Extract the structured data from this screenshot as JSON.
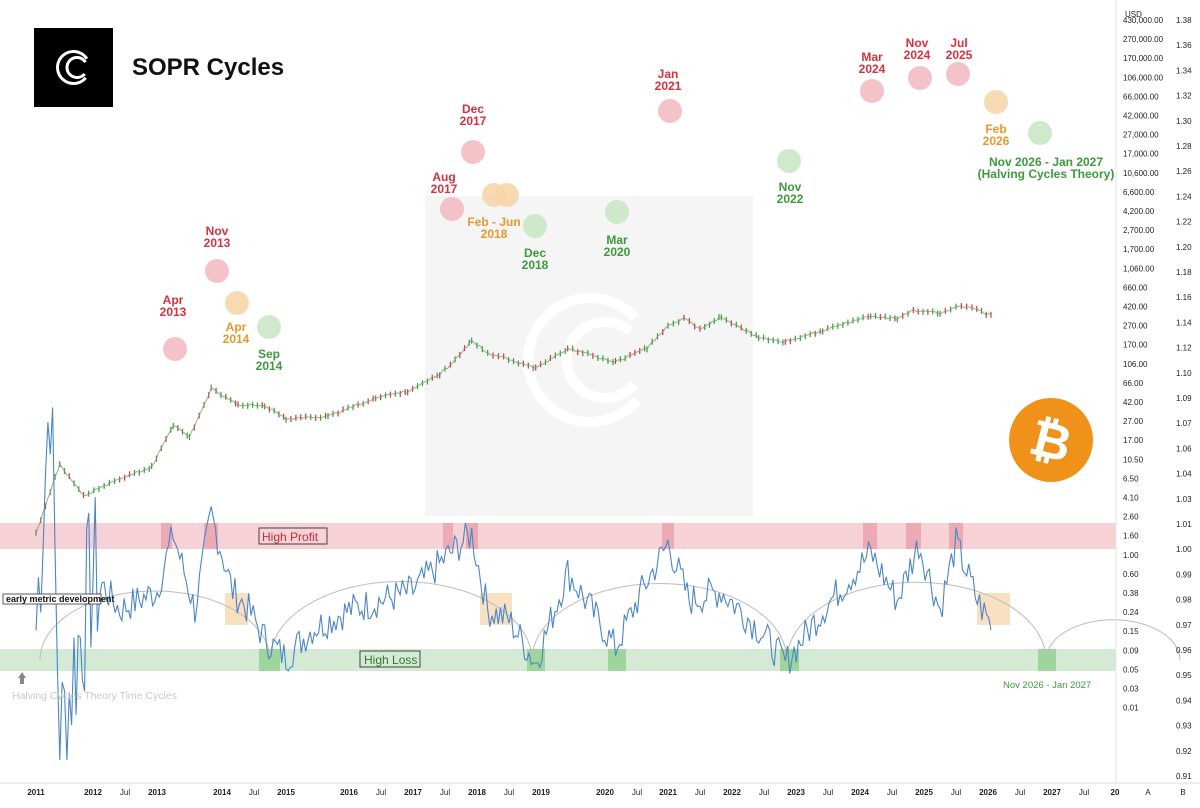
{
  "title": "SOPR Cycles",
  "brand_mark_name": "C",
  "chart_data": {
    "type": "line",
    "title": "SOPR Cycles",
    "price_axis": {
      "unit": "USD",
      "scale": "log",
      "ticks": [
        "430,000.00",
        "270,000.00",
        "170,000.00",
        "106,000.00",
        "66,000.00",
        "42,000.00",
        "27,000.00",
        "17,000.00",
        "10,600.00",
        "6,600.00",
        "4,200.00",
        "2,700.00",
        "1,700.00",
        "1,060.00",
        "660.00",
        "420.00",
        "270.00",
        "170.00",
        "106.00",
        "66.00",
        "42.00",
        "27.00",
        "17.00",
        "10.50",
        "6.50",
        "4.10",
        "2.60",
        "1.60",
        "1.00",
        "0.60",
        "0.38",
        "0.24",
        "0.15",
        "0.09",
        "0.05",
        "0.03",
        "0.01"
      ]
    },
    "sopr_axis": {
      "ticks": [
        "1.38",
        "1.36",
        "1.34",
        "1.32",
        "1.30",
        "1.28",
        "1.26",
        "1.24",
        "1.22",
        "1.20",
        "1.18",
        "1.16",
        "1.14",
        "1.12",
        "1.10",
        "1.09",
        "1.07",
        "1.06",
        "1.04",
        "1.03",
        "1.01",
        "1.00",
        "0.99",
        "0.98",
        "0.97",
        "0.96",
        "0.95",
        "0.94",
        "0.93",
        "0.92",
        "0.91"
      ]
    },
    "x_axis": {
      "labels": [
        "2011",
        "2012",
        "Jul",
        "2013",
        "2014",
        "Jul",
        "2015",
        "2016",
        "Jul",
        "2017",
        "Jul",
        "2018",
        "Jul",
        "2019",
        "2020",
        "Jul",
        "2021",
        "Jul",
        "2022",
        "Jul",
        "2023",
        "Jul",
        "2024",
        "Jul",
        "2025",
        "Jul",
        "2026",
        "Jul",
        "2027",
        "Jul",
        "20",
        "A",
        "B"
      ]
    },
    "price_series": {
      "name": "BTC price",
      "points": [
        [
          "2011-01",
          0.3
        ],
        [
          "2011-06",
          15
        ],
        [
          "2011-11",
          2.5
        ],
        [
          "2012-06",
          6.5
        ],
        [
          "2012-12",
          13
        ],
        [
          "2013-04",
          140
        ],
        [
          "2013-07",
          70
        ],
        [
          "2013-11",
          1100
        ],
        [
          "2014-04",
          450
        ],
        [
          "2014-09",
          420
        ],
        [
          "2015-01",
          200
        ],
        [
          "2015-09",
          230
        ],
        [
          "2016-06",
          650
        ],
        [
          "2016-12",
          950
        ],
        [
          "2017-06",
          2500
        ],
        [
          "2017-08",
          4200
        ],
        [
          "2017-12",
          17000
        ],
        [
          "2018-03",
          8500
        ],
        [
          "2018-06",
          6500
        ],
        [
          "2018-12",
          3500
        ],
        [
          "2019-06",
          11000
        ],
        [
          "2020-03",
          5000
        ],
        [
          "2020-09",
          11000
        ],
        [
          "2021-01",
          38000
        ],
        [
          "2021-04",
          60000
        ],
        [
          "2021-07",
          32000
        ],
        [
          "2021-11",
          66000
        ],
        [
          "2022-06",
          20000
        ],
        [
          "2022-11",
          16000
        ],
        [
          "2023-06",
          30000
        ],
        [
          "2024-03",
          70000
        ],
        [
          "2024-08",
          58000
        ],
        [
          "2024-11",
          95000
        ],
        [
          "2025-04",
          80000
        ],
        [
          "2025-07",
          118000
        ],
        [
          "2025-10",
          110000
        ],
        [
          "2026-02",
          67000
        ]
      ]
    },
    "sopr_series": {
      "name": "SOPR",
      "points": [
        [
          "2011-01",
          0.99
        ],
        [
          "2011-04",
          1.12
        ],
        [
          "2011-06",
          0.93
        ],
        [
          "2011-09",
          0.97
        ],
        [
          "2012-01",
          1.02
        ],
        [
          "2012-06",
          1.0
        ],
        [
          "2013-01",
          1.01
        ],
        [
          "2013-04",
          1.04
        ],
        [
          "2013-08",
          1.0
        ],
        [
          "2013-11",
          1.05
        ],
        [
          "2014-03",
          1.01
        ],
        [
          "2014-06",
          1.0
        ],
        [
          "2014-09",
          0.985
        ],
        [
          "2015-01",
          0.975
        ],
        [
          "2015-06",
          0.99
        ],
        [
          "2016-01",
          1.0
        ],
        [
          "2016-07",
          1.005
        ],
        [
          "2017-01",
          1.01
        ],
        [
          "2017-08",
          1.03
        ],
        [
          "2017-12",
          1.04
        ],
        [
          "2018-03",
          1.0
        ],
        [
          "2018-07",
          0.995
        ],
        [
          "2018-12",
          0.972
        ],
        [
          "2019-06",
          1.02
        ],
        [
          "2020-03",
          0.98
        ],
        [
          "2020-08",
          1.01
        ],
        [
          "2021-01",
          1.035
        ],
        [
          "2021-05",
          1.005
        ],
        [
          "2021-11",
          1.01
        ],
        [
          "2022-06",
          0.99
        ],
        [
          "2022-11",
          0.972
        ],
        [
          "2023-06",
          1.0
        ],
        [
          "2024-03",
          1.03
        ],
        [
          "2024-08",
          1.005
        ],
        [
          "2024-12",
          1.035
        ],
        [
          "2025-04",
          1.0
        ],
        [
          "2025-07",
          1.035
        ],
        [
          "2025-11",
          1.005
        ],
        [
          "2026-02",
          0.99
        ]
      ]
    },
    "bands": [
      {
        "label": "High Profit",
        "color": "#f4c9cf"
      },
      {
        "label": "High Loss",
        "color": "#cfe8cf"
      }
    ],
    "labels_misc": {
      "early": "early metric development",
      "halving_left": "Halving Cycles Theory Time Cycles",
      "halving_right": "Nov 2026 - Jan 2027"
    },
    "annotations": [
      {
        "lines": [
          "Apr",
          "2013"
        ],
        "kind": "top"
      },
      {
        "lines": [
          "Nov",
          "2013"
        ],
        "kind": "top"
      },
      {
        "lines": [
          "Apr",
          "2014"
        ],
        "kind": "mid"
      },
      {
        "lines": [
          "Sep",
          "2014"
        ],
        "kind": "bottom"
      },
      {
        "lines": [
          "Aug",
          "2017"
        ],
        "kind": "top"
      },
      {
        "lines": [
          "Dec",
          "2017"
        ],
        "kind": "top"
      },
      {
        "lines": [
          "Feb - Jun",
          "2018"
        ],
        "kind": "mid"
      },
      {
        "lines": [
          "Dec",
          "2018"
        ],
        "kind": "bottom"
      },
      {
        "lines": [
          "Mar",
          "2020"
        ],
        "kind": "bottom"
      },
      {
        "lines": [
          "Jan",
          "2021"
        ],
        "kind": "top"
      },
      {
        "lines": [
          "Nov",
          "2022"
        ],
        "kind": "bottom"
      },
      {
        "lines": [
          "Mar",
          "2024"
        ],
        "kind": "top"
      },
      {
        "lines": [
          "Nov",
          "2024"
        ],
        "kind": "top"
      },
      {
        "lines": [
          "Jul",
          "2025"
        ],
        "kind": "top"
      },
      {
        "lines": [
          "Feb",
          "2026"
        ],
        "kind": "mid"
      },
      {
        "lines": [
          "Nov 2026 - Jan 2027",
          "(Halving Cycles Theory)"
        ],
        "kind": "bottom"
      }
    ],
    "colors": {
      "top": "#d6313d",
      "mid": "#e8982a",
      "bottom": "#3b9a3b",
      "sopr": "#4a86c8",
      "price_up": "#3b9a3b",
      "price_down": "#d6313d",
      "bitcoin": "#f0921a"
    },
    "grid": false
  }
}
